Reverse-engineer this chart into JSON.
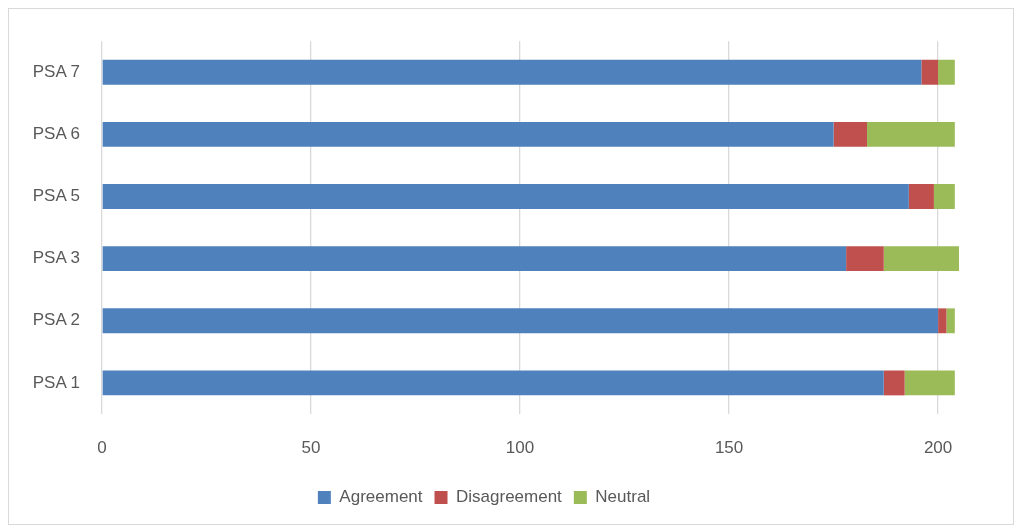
{
  "chart_data": {
    "type": "bar",
    "orientation": "horizontal",
    "stacked": true,
    "categories": [
      "PSA 7",
      "PSA 6",
      "PSA 5",
      "PSA 3",
      "PSA 2",
      "PSA 1"
    ],
    "series": [
      {
        "name": "Agreement",
        "color": "#4f81bd",
        "values": [
          196,
          175,
          193,
          178,
          200,
          187
        ]
      },
      {
        "name": "Disagreement",
        "color": "#c0504d",
        "values": [
          4,
          8,
          6,
          9,
          2,
          5
        ]
      },
      {
        "name": "Neutral",
        "color": "#9bbb59",
        "values": [
          4,
          21,
          5,
          18,
          2,
          12
        ]
      }
    ],
    "xlim": [
      0,
      205
    ],
    "xticks": [
      0,
      50,
      100,
      150,
      200
    ],
    "grid": "x",
    "legend": "bottom"
  }
}
